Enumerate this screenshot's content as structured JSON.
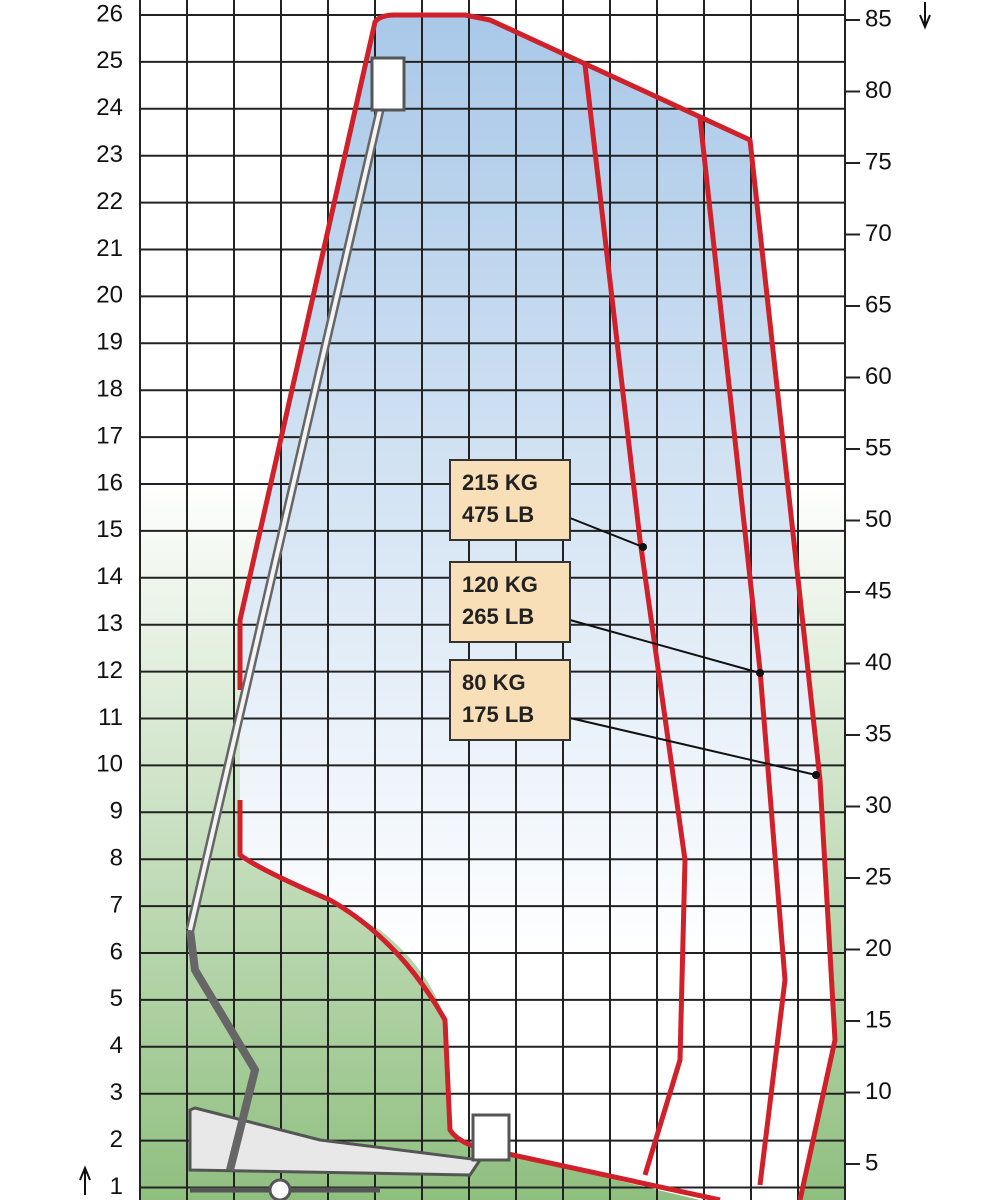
{
  "left_axis": {
    "labels": [
      26,
      25,
      24,
      23,
      22,
      21,
      20,
      19,
      18,
      17,
      16,
      15,
      14,
      13,
      12,
      11,
      10,
      9,
      8,
      7,
      6,
      5,
      4,
      3,
      2,
      1
    ]
  },
  "right_axis": {
    "labels": [
      85,
      80,
      75,
      70,
      65,
      60,
      55,
      50,
      45,
      40,
      35,
      30,
      25,
      20,
      15,
      10,
      5
    ]
  },
  "load_labels": [
    {
      "lines": [
        "215 KG",
        "475 LB"
      ]
    },
    {
      "lines": [
        "120 KG",
        "265 LB"
      ]
    },
    {
      "lines": [
        "80 KG",
        "175 LB"
      ]
    }
  ]
}
